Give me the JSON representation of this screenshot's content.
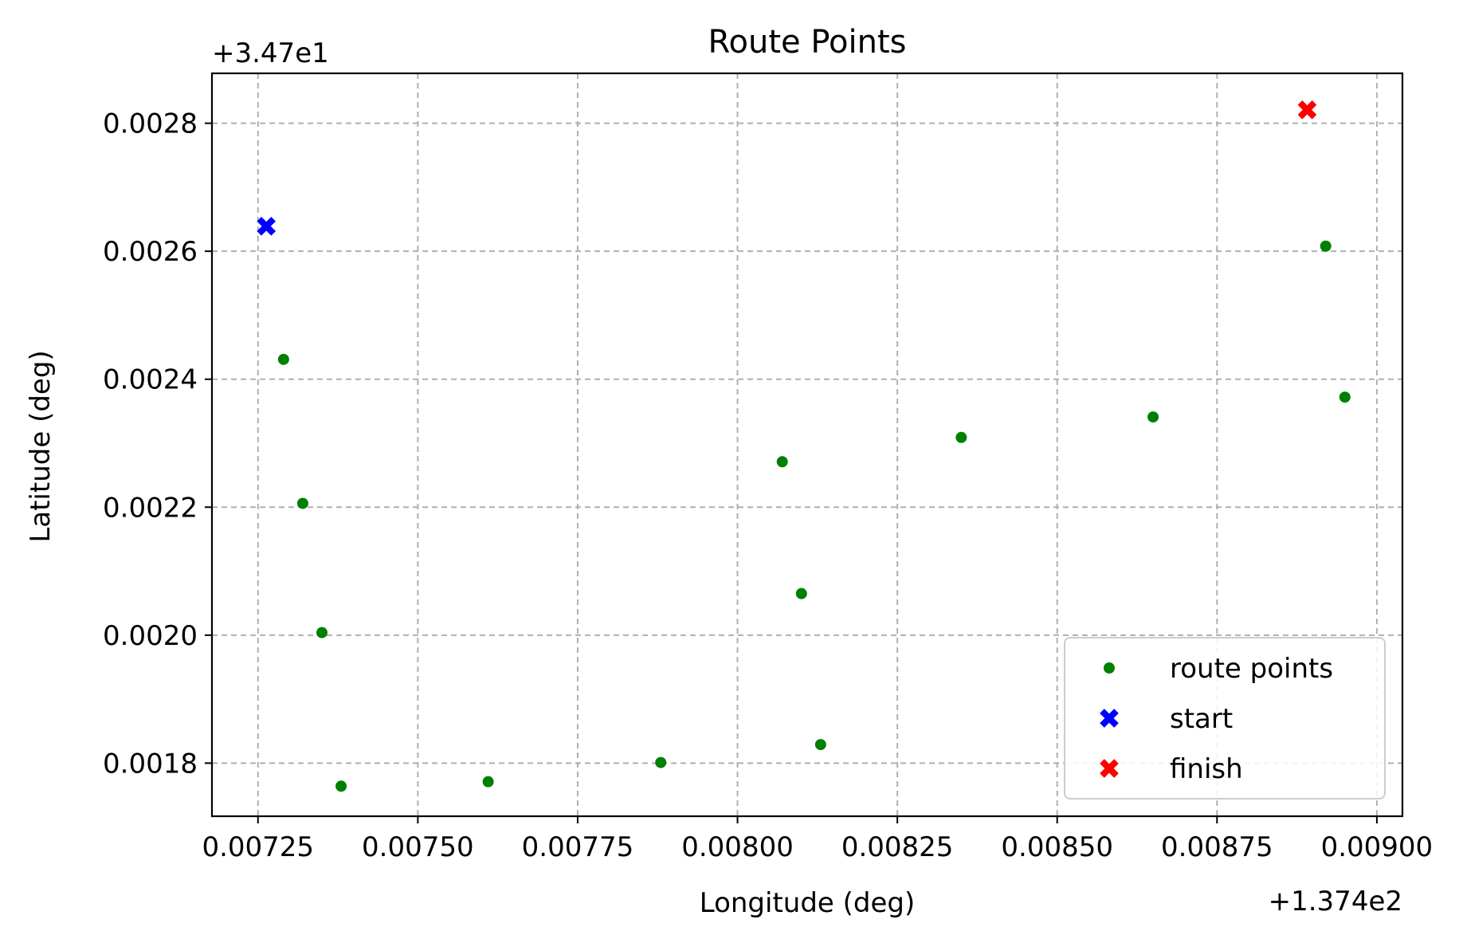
{
  "chart_data": {
    "type": "scatter",
    "title": "Route Points",
    "xlabel": "Longitude (deg)",
    "ylabel": "Latitude (deg)",
    "x_offset_label": "+1.374e2",
    "y_offset_label": "+3.47e1",
    "xlim": [
      0.007178,
      0.00904
    ],
    "ylim": [
      0.001717,
      0.002878
    ],
    "x_ticks": [
      0.00725,
      0.0075,
      0.00775,
      0.008,
      0.00825,
      0.0085,
      0.00875,
      0.009
    ],
    "x_tick_labels": [
      "0.00725",
      "0.00750",
      "0.00775",
      "0.00800",
      "0.00825",
      "0.00850",
      "0.00875",
      "0.00900"
    ],
    "y_ticks": [
      0.0018,
      0.002,
      0.0022,
      0.0024,
      0.0026,
      0.0028
    ],
    "y_tick_labels": [
      "0.0018",
      "0.0020",
      "0.0022",
      "0.0024",
      "0.0026",
      "0.0028"
    ],
    "grid": true,
    "legend_position": "lower right",
    "series": [
      {
        "name": "route points",
        "marker": "dot",
        "color": "#008000",
        "points": [
          {
            "x": 0.00729,
            "y": 0.002431
          },
          {
            "x": 0.00732,
            "y": 0.002206
          },
          {
            "x": 0.00735,
            "y": 0.002004
          },
          {
            "x": 0.00738,
            "y": 0.001764
          },
          {
            "x": 0.00761,
            "y": 0.001771
          },
          {
            "x": 0.00788,
            "y": 0.001801
          },
          {
            "x": 0.00807,
            "y": 0.002271
          },
          {
            "x": 0.0081,
            "y": 0.002065
          },
          {
            "x": 0.00813,
            "y": 0.001829
          },
          {
            "x": 0.00835,
            "y": 0.002309
          },
          {
            "x": 0.00865,
            "y": 0.002341
          },
          {
            "x": 0.00892,
            "y": 0.002608
          },
          {
            "x": 0.00895,
            "y": 0.002372
          }
        ]
      },
      {
        "name": "start",
        "marker": "x",
        "color": "#0000ff",
        "points": [
          {
            "x": 0.007263,
            "y": 0.002639
          }
        ]
      },
      {
        "name": "finish",
        "marker": "x",
        "color": "#ff0000",
        "points": [
          {
            "x": 0.008891,
            "y": 0.002821
          }
        ]
      }
    ]
  }
}
